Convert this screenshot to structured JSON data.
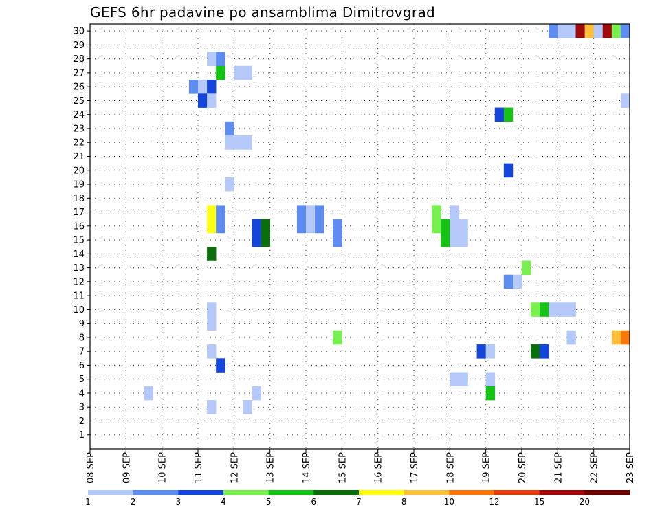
{
  "title": "GEFS 6hr padavine po ansamblima Dimitrovgrad",
  "chart_data": {
    "type": "heatmap",
    "title": "GEFS 6hr padavine po ansamblima Dimitrovgrad",
    "x_ticks": [
      "08 SEP",
      "09 SEP",
      "10 SEP",
      "11 SEP",
      "12 SEP",
      "13 SEP",
      "14 SEP",
      "15 SEP",
      "16 SEP",
      "17 SEP",
      "18 SEP",
      "19 SEP",
      "20 SEP",
      "21 SEP",
      "22 SEP",
      "23 SEP"
    ],
    "y_ticks": [
      1,
      2,
      3,
      4,
      5,
      6,
      7,
      8,
      9,
      10,
      11,
      12,
      13,
      14,
      15,
      16,
      17,
      18,
      19,
      20,
      21,
      22,
      23,
      24,
      25,
      26,
      27,
      28,
      29,
      30
    ],
    "xlim_steps": [
      0,
      60
    ],
    "ylim": [
      0,
      30.5
    ],
    "grid": true,
    "colorbar": {
      "labels": [
        "1",
        "2",
        "3",
        "4",
        "5",
        "6",
        "7",
        "8",
        "10",
        "12",
        "15",
        "20"
      ],
      "colors": [
        "#b4c8fa",
        "#5f8cf0",
        "#1446dc",
        "#78f050",
        "#14c314",
        "#0a6e0a",
        "#ffff14",
        "#ffbe3c",
        "#fa780a",
        "#e13c0a",
        "#a00a0a",
        "#6e0000"
      ]
    },
    "cells": [
      {
        "member": 30,
        "step": 52,
        "value": 2
      },
      {
        "member": 30,
        "step": 53,
        "value": 1
      },
      {
        "member": 30,
        "step": 54,
        "value": 1
      },
      {
        "member": 30,
        "step": 55,
        "value": 15
      },
      {
        "member": 30,
        "step": 56,
        "value": 8
      },
      {
        "member": 30,
        "step": 57,
        "value": 1
      },
      {
        "member": 30,
        "step": 58,
        "value": 15
      },
      {
        "member": 30,
        "step": 59,
        "value": 4
      },
      {
        "member": 30,
        "step": 60,
        "value": 2
      },
      {
        "member": 28,
        "step": 14,
        "value": 1
      },
      {
        "member": 28,
        "step": 15,
        "value": 2
      },
      {
        "member": 27,
        "step": 15,
        "value": 5
      },
      {
        "member": 27,
        "step": 17,
        "value": 1
      },
      {
        "member": 27,
        "step": 18,
        "value": 1
      },
      {
        "member": 26,
        "step": 12,
        "value": 2
      },
      {
        "member": 26,
        "step": 13,
        "value": 1
      },
      {
        "member": 26,
        "step": 14,
        "value": 3
      },
      {
        "member": 25,
        "step": 13,
        "value": 3
      },
      {
        "member": 25,
        "step": 14,
        "value": 1
      },
      {
        "member": 25,
        "step": 60,
        "value": 1
      },
      {
        "member": 24,
        "step": 46,
        "value": 3
      },
      {
        "member": 24,
        "step": 47,
        "value": 5
      },
      {
        "member": 23,
        "step": 16,
        "value": 2
      },
      {
        "member": 22,
        "step": 16,
        "value": 1
      },
      {
        "member": 22,
        "step": 17,
        "value": 1
      },
      {
        "member": 22,
        "step": 18,
        "value": 1
      },
      {
        "member": 20,
        "step": 47,
        "value": 3
      },
      {
        "member": 19,
        "step": 16,
        "value": 1
      },
      {
        "member": 17,
        "step": 14,
        "value": 7
      },
      {
        "member": 17,
        "step": 15,
        "value": 2
      },
      {
        "member": 17,
        "step": 24,
        "value": 2
      },
      {
        "member": 17,
        "step": 25,
        "value": 1
      },
      {
        "member": 17,
        "step": 26,
        "value": 2
      },
      {
        "member": 17,
        "step": 39,
        "value": 4
      },
      {
        "member": 17,
        "step": 41,
        "value": 1
      },
      {
        "member": 16,
        "step": 14,
        "value": 7
      },
      {
        "member": 16,
        "step": 15,
        "value": 2
      },
      {
        "member": 16,
        "step": 24,
        "value": 2
      },
      {
        "member": 16,
        "step": 25,
        "value": 1
      },
      {
        "member": 16,
        "step": 26,
        "value": 2
      },
      {
        "member": 16,
        "step": 39,
        "value": 4
      },
      {
        "member": 16,
        "step": 40,
        "value": 5
      },
      {
        "member": 16,
        "step": 41,
        "value": 1
      },
      {
        "member": 16,
        "step": 42,
        "value": 1
      },
      {
        "member": 16,
        "step": 19,
        "value": 3
      },
      {
        "member": 16,
        "step": 20,
        "value": 6
      },
      {
        "member": 16,
        "step": 28,
        "value": 2
      },
      {
        "member": 15,
        "step": 19,
        "value": 3
      },
      {
        "member": 15,
        "step": 20,
        "value": 6
      },
      {
        "member": 15,
        "step": 28,
        "value": 2
      },
      {
        "member": 15,
        "step": 40,
        "value": 5
      },
      {
        "member": 15,
        "step": 41,
        "value": 1
      },
      {
        "member": 15,
        "step": 42,
        "value": 1
      },
      {
        "member": 14,
        "step": 14,
        "value": 6
      },
      {
        "member": 13,
        "step": 49,
        "value": 4
      },
      {
        "member": 12,
        "step": 47,
        "value": 2
      },
      {
        "member": 12,
        "step": 48,
        "value": 1
      },
      {
        "member": 10,
        "step": 14,
        "value": 1
      },
      {
        "member": 10,
        "step": 50,
        "value": 4
      },
      {
        "member": 10,
        "step": 51,
        "value": 5
      },
      {
        "member": 10,
        "step": 52,
        "value": 1
      },
      {
        "member": 10,
        "step": 53,
        "value": 1
      },
      {
        "member": 10,
        "step": 54,
        "value": 1
      },
      {
        "member": 9,
        "step": 14,
        "value": 1
      },
      {
        "member": 8,
        "step": 28,
        "value": 4
      },
      {
        "member": 8,
        "step": 54,
        "value": 1
      },
      {
        "member": 8,
        "step": 59,
        "value": 8
      },
      {
        "member": 8,
        "step": 60,
        "value": 10
      },
      {
        "member": 7,
        "step": 14,
        "value": 1
      },
      {
        "member": 7,
        "step": 44,
        "value": 3
      },
      {
        "member": 7,
        "step": 45,
        "value": 1
      },
      {
        "member": 7,
        "step": 50,
        "value": 6
      },
      {
        "member": 7,
        "step": 51,
        "value": 3
      },
      {
        "member": 6,
        "step": 15,
        "value": 3
      },
      {
        "member": 5,
        "step": 41,
        "value": 1
      },
      {
        "member": 5,
        "step": 42,
        "value": 1
      },
      {
        "member": 5,
        "step": 45,
        "value": 1
      },
      {
        "member": 4,
        "step": 7,
        "value": 1
      },
      {
        "member": 4,
        "step": 19,
        "value": 1
      },
      {
        "member": 4,
        "step": 45,
        "value": 5
      },
      {
        "member": 3,
        "step": 14,
        "value": 1
      },
      {
        "member": 3,
        "step": 18,
        "value": 1
      }
    ]
  }
}
